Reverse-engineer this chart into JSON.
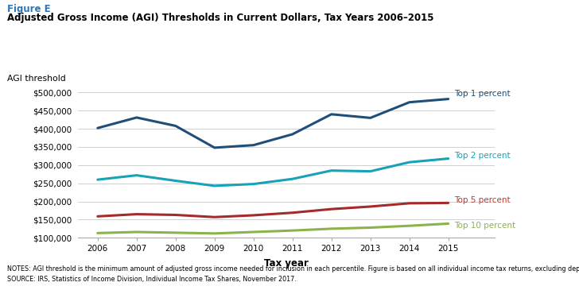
{
  "figure_label": "Figure E",
  "title": "Adjusted Gross Income (AGI) Thresholds in Current Dollars, Tax Years 2006–2015",
  "ylabel": "AGI threshold",
  "xlabel": "Tax year",
  "notes_line1": "NOTES: AGI threshold is the minimum amount of adjusted gross income needed for inclusion in each percentile. Figure is based on all individual income tax returns, excluding dependents.",
  "notes_line2": "SOURCE: IRS, Statistics of Income Division, Individual Income Tax Shares, November 2017.",
  "years": [
    2006,
    2007,
    2008,
    2009,
    2010,
    2011,
    2012,
    2013,
    2014,
    2015
  ],
  "top1_y": [
    402000,
    431000,
    408000,
    348000,
    355000,
    385000,
    440000,
    430000,
    473000,
    482000
  ],
  "top2_y": [
    260000,
    272000,
    257000,
    243000,
    248000,
    262000,
    285000,
    283000,
    308000,
    318000
  ],
  "top5_y": [
    159000,
    165000,
    163000,
    157000,
    162000,
    169000,
    179000,
    186000,
    195000,
    196000
  ],
  "top10_y": [
    113000,
    116000,
    114000,
    112000,
    116000,
    120000,
    125000,
    128000,
    133000,
    139000
  ],
  "colors": {
    "top1": "#1f4e79",
    "top2": "#17a2b8",
    "top5": "#a52a2a",
    "top10": "#8ab34c"
  },
  "label_colors": {
    "top1": "#1f4e79",
    "top2": "#17a2b8",
    "top5": "#c0392b",
    "top10": "#8ab34c"
  },
  "ylim": [
    100000,
    515000
  ],
  "yticks": [
    100000,
    150000,
    200000,
    250000,
    300000,
    350000,
    400000,
    450000,
    500000
  ],
  "xlim": [
    2005.5,
    2016.2
  ],
  "background_color": "#ffffff",
  "figure_label_color": "#2e75b6",
  "grid_color": "#c8c8c8",
  "line_width": 2.2
}
